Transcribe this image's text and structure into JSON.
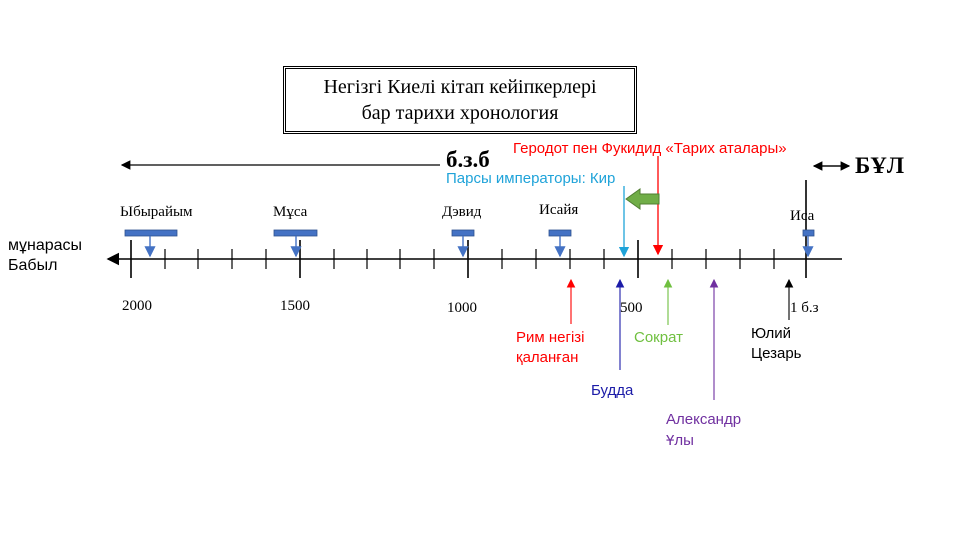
{
  "title": {
    "line1": "Негізгі Киелі кітап кейіпкерлері",
    "line2": "бар тарихи хронология"
  },
  "era": {
    "bce": "б.з.б",
    "ce": "БҰЛ"
  },
  "left_label": {
    "line1": "мұнарасы",
    "line2": "Бабыл"
  },
  "ticks": {
    "t2000": "2000",
    "t1500": "1500",
    "t1000": "1000",
    "t500": "500",
    "t1": "1 б.з"
  },
  "people": {
    "abraham": "Ыбырайым",
    "moses": "Мұса",
    "david": "Дэвид",
    "isaiah": "Исайя",
    "jesus": "Иса"
  },
  "events": {
    "herodotus": "Геродот пен Фукидид «Тарих аталары»",
    "persian": "Парсы императоры: Кир",
    "rome_line1": "Рим негізі",
    "rome_line2": "қаланған",
    "socrates": "Сократ",
    "buddha": "Будда",
    "alexander_line1": "Александр",
    "alexander_line2": "Ұлы",
    "caesar_line1": "Юлий",
    "caesar_line2": "Цезарь"
  },
  "colors": {
    "red": "#ff0000",
    "cyan": "#1fa3d9",
    "green": "#70c040",
    "blue": "#1c1ca8",
    "purple": "#7030a0",
    "bar": "#4472c4",
    "arrow_fill": "#70ad47"
  }
}
